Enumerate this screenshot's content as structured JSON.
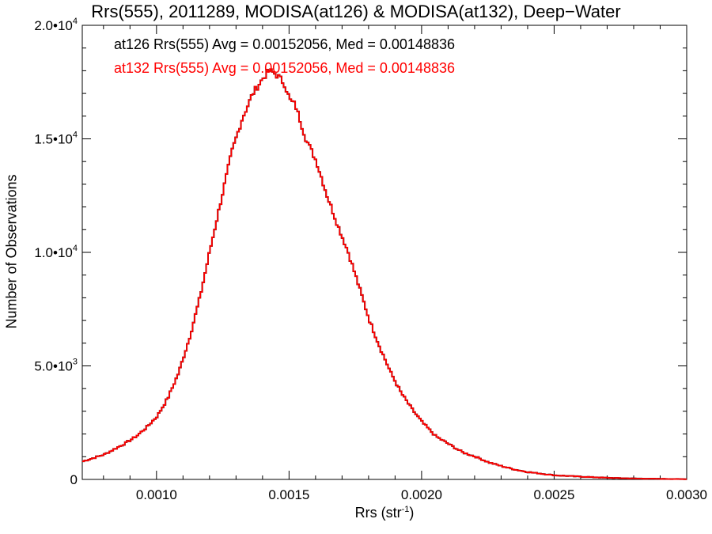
{
  "chart_data": {
    "type": "line",
    "title": "Rrs(555), 2011289, MODISA(at126) & MODISA(at132), Deep−Water",
    "xlabel": "Rrs (str",
    "xlabel_unit_exp": "-1",
    "xlabel_close": ")",
    "ylabel": "Number of Observations",
    "xlim": [
      0.00072,
      0.003
    ],
    "ylim": [
      0,
      20000
    ],
    "x_ticks": [
      {
        "value": 0.001,
        "label": "0.0010"
      },
      {
        "value": 0.0015,
        "label": "0.0015"
      },
      {
        "value": 0.002,
        "label": "0.0020"
      },
      {
        "value": 0.0025,
        "label": "0.0025"
      },
      {
        "value": 0.003,
        "label": "0.0030"
      }
    ],
    "y_ticks": [
      {
        "value": 0,
        "mantissa": "0",
        "exp": ""
      },
      {
        "value": 5000,
        "mantissa": "5.0•10",
        "exp": "3"
      },
      {
        "value": 10000,
        "mantissa": "1.0•10",
        "exp": "4"
      },
      {
        "value": 15000,
        "mantissa": "1.5•10",
        "exp": "4"
      },
      {
        "value": 20000,
        "mantissa": "2.0•10",
        "exp": "4"
      }
    ],
    "annotations": [
      "at126 Rrs(555) Avg = 0.00152056, Med = 0.00148836",
      "at132 Rrs(555) Avg = 0.00152056, Med = 0.00148836"
    ],
    "series": [
      {
        "name": "at126",
        "color": "#000000",
        "step": true,
        "x": [],
        "values": []
      },
      {
        "name": "at132",
        "color": "#ff0000",
        "step": true,
        "x": [],
        "values": []
      }
    ],
    "histogram_points": {
      "x": [
        0.00072,
        0.00076,
        0.0008,
        0.00084,
        0.00088,
        0.00092,
        0.00096,
        0.001,
        0.00104,
        0.00108,
        0.00112,
        0.00116,
        0.0012,
        0.00124,
        0.00128,
        0.00132,
        0.00136,
        0.0014,
        0.00142,
        0.00144,
        0.00146,
        0.00148,
        0.0015,
        0.00152,
        0.00156,
        0.0016,
        0.00164,
        0.00168,
        0.00172,
        0.00176,
        0.0018,
        0.00184,
        0.00188,
        0.00192,
        0.00196,
        0.002,
        0.00205,
        0.0021,
        0.00215,
        0.0022,
        0.00225,
        0.0023,
        0.00235,
        0.0024,
        0.00245,
        0.0025,
        0.0026,
        0.0027,
        0.0028,
        0.0029,
        0.003
      ],
      "y": [
        800,
        950,
        1100,
        1350,
        1600,
        1900,
        2300,
        2800,
        3600,
        4700,
        6200,
        8000,
        10200,
        12300,
        14400,
        15900,
        17000,
        17700,
        18000,
        17900,
        17700,
        17400,
        16700,
        16500,
        15000,
        14000,
        12500,
        11200,
        10000,
        8500,
        7000,
        5800,
        4700,
        3800,
        3100,
        2500,
        1900,
        1550,
        1200,
        1000,
        750,
        580,
        430,
        320,
        250,
        180,
        120,
        70,
        40,
        25,
        10
      ]
    },
    "grid": false,
    "legend": "top-left"
  }
}
